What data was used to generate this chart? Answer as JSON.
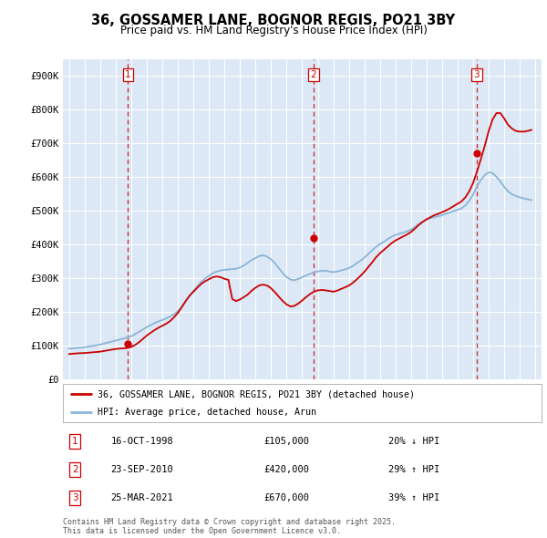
{
  "title": "36, GOSSAMER LANE, BOGNOR REGIS, PO21 3BY",
  "subtitle": "Price paid vs. HM Land Registry's House Price Index (HPI)",
  "ylim": [
    0,
    950000
  ],
  "yticks": [
    0,
    100000,
    200000,
    300000,
    400000,
    500000,
    600000,
    700000,
    800000,
    900000
  ],
  "ytick_labels": [
    "£0",
    "£100K",
    "£200K",
    "£300K",
    "£400K",
    "£500K",
    "£600K",
    "£700K",
    "£800K",
    "£900K"
  ],
  "fig_bg": "#ffffff",
  "plot_bg": "#dce8f5",
  "grid_color": "#ffffff",
  "hpi_color": "#8ab4d8",
  "price_color": "#cc0000",
  "vline_color": "#cc0000",
  "legend_label_price": "36, GOSSAMER LANE, BOGNOR REGIS, PO21 3BY (detached house)",
  "legend_label_hpi": "HPI: Average price, detached house, Arun",
  "transaction_labels": [
    "1",
    "2",
    "3"
  ],
  "transaction_dates_display": [
    "16-OCT-1998",
    "23-SEP-2010",
    "25-MAR-2021"
  ],
  "transaction_prices_display": [
    "£105,000",
    "£420,000",
    "£670,000"
  ],
  "transaction_hpi_display": [
    "20% ↓ HPI",
    "29% ↑ HPI",
    "39% ↑ HPI"
  ],
  "footnote": "Contains HM Land Registry data © Crown copyright and database right 2025.\nThis data is licensed under the Open Government Licence v3.0.",
  "sale1_year": 1998.79,
  "sale1_price": 105000,
  "sale2_year": 2010.73,
  "sale2_price": 420000,
  "sale3_year": 2021.23,
  "sale3_price": 670000,
  "hpi_years": [
    1995.0,
    1995.25,
    1995.5,
    1995.75,
    1996.0,
    1996.25,
    1996.5,
    1996.75,
    1997.0,
    1997.25,
    1997.5,
    1997.75,
    1998.0,
    1998.25,
    1998.5,
    1998.75,
    1999.0,
    1999.25,
    1999.5,
    1999.75,
    2000.0,
    2000.25,
    2000.5,
    2000.75,
    2001.0,
    2001.25,
    2001.5,
    2001.75,
    2002.0,
    2002.25,
    2002.5,
    2002.75,
    2003.0,
    2003.25,
    2003.5,
    2003.75,
    2004.0,
    2004.25,
    2004.5,
    2004.75,
    2005.0,
    2005.25,
    2005.5,
    2005.75,
    2006.0,
    2006.25,
    2006.5,
    2006.75,
    2007.0,
    2007.25,
    2007.5,
    2007.75,
    2008.0,
    2008.25,
    2008.5,
    2008.75,
    2009.0,
    2009.25,
    2009.5,
    2009.75,
    2010.0,
    2010.25,
    2010.5,
    2010.75,
    2011.0,
    2011.25,
    2011.5,
    2011.75,
    2012.0,
    2012.25,
    2012.5,
    2012.75,
    2013.0,
    2013.25,
    2013.5,
    2013.75,
    2014.0,
    2014.25,
    2014.5,
    2014.75,
    2015.0,
    2015.25,
    2015.5,
    2015.75,
    2016.0,
    2016.25,
    2016.5,
    2016.75,
    2017.0,
    2017.25,
    2017.5,
    2017.75,
    2018.0,
    2018.25,
    2018.5,
    2018.75,
    2019.0,
    2019.25,
    2019.5,
    2019.75,
    2020.0,
    2020.25,
    2020.5,
    2020.75,
    2021.0,
    2021.25,
    2021.5,
    2021.75,
    2022.0,
    2022.25,
    2022.5,
    2022.75,
    2023.0,
    2023.25,
    2023.5,
    2023.75,
    2024.0,
    2024.25,
    2024.5,
    2024.75
  ],
  "hpi_values": [
    91000,
    92000,
    93000,
    94000,
    95000,
    97000,
    99000,
    101000,
    103000,
    106000,
    109000,
    112000,
    115000,
    118000,
    121000,
    124000,
    128000,
    134000,
    141000,
    148000,
    155000,
    161000,
    167000,
    172000,
    176000,
    181000,
    186000,
    193000,
    202000,
    216000,
    232000,
    248000,
    262000,
    276000,
    289000,
    299000,
    307000,
    315000,
    320000,
    323000,
    325000,
    326000,
    327000,
    328000,
    332000,
    338000,
    346000,
    354000,
    360000,
    366000,
    368000,
    364000,
    356000,
    344000,
    330000,
    315000,
    303000,
    296000,
    294000,
    298000,
    303000,
    308000,
    313000,
    318000,
    320000,
    322000,
    322000,
    320000,
    318000,
    320000,
    323000,
    326000,
    330000,
    336000,
    344000,
    352000,
    361000,
    372000,
    383000,
    393000,
    401000,
    408000,
    416000,
    423000,
    428000,
    432000,
    435000,
    439000,
    444000,
    452000,
    461000,
    468000,
    474000,
    478000,
    481000,
    484000,
    487000,
    491000,
    495000,
    499000,
    503000,
    507000,
    516000,
    530000,
    548000,
    573000,
    592000,
    606000,
    614000,
    612000,
    601000,
    587000,
    571000,
    558000,
    549000,
    544000,
    540000,
    537000,
    534000,
    532000
  ],
  "price_years": [
    1995.0,
    1995.25,
    1995.5,
    1995.75,
    1996.0,
    1996.25,
    1996.5,
    1996.75,
    1997.0,
    1997.25,
    1997.5,
    1997.75,
    1998.0,
    1998.25,
    1998.5,
    1998.75,
    1999.0,
    1999.25,
    1999.5,
    1999.75,
    2000.0,
    2000.25,
    2000.5,
    2000.75,
    2001.0,
    2001.25,
    2001.5,
    2001.75,
    2002.0,
    2002.25,
    2002.5,
    2002.75,
    2003.0,
    2003.25,
    2003.5,
    2003.75,
    2004.0,
    2004.25,
    2004.5,
    2004.75,
    2005.0,
    2005.25,
    2005.5,
    2005.75,
    2006.0,
    2006.25,
    2006.5,
    2006.75,
    2007.0,
    2007.25,
    2007.5,
    2007.75,
    2008.0,
    2008.25,
    2008.5,
    2008.75,
    2009.0,
    2009.25,
    2009.5,
    2009.75,
    2010.0,
    2010.25,
    2010.5,
    2010.75,
    2011.0,
    2011.25,
    2011.5,
    2011.75,
    2012.0,
    2012.25,
    2012.5,
    2012.75,
    2013.0,
    2013.25,
    2013.5,
    2013.75,
    2014.0,
    2014.25,
    2014.5,
    2014.75,
    2015.0,
    2015.25,
    2015.5,
    2015.75,
    2016.0,
    2016.25,
    2016.5,
    2016.75,
    2017.0,
    2017.25,
    2017.5,
    2017.75,
    2018.0,
    2018.25,
    2018.5,
    2018.75,
    2019.0,
    2019.25,
    2019.5,
    2019.75,
    2020.0,
    2020.25,
    2020.5,
    2020.75,
    2021.0,
    2021.25,
    2021.5,
    2021.75,
    2022.0,
    2022.25,
    2022.5,
    2022.75,
    2023.0,
    2023.25,
    2023.5,
    2023.75,
    2024.0,
    2024.25,
    2024.5,
    2024.75
  ],
  "price_values": [
    75000,
    76000,
    77000,
    77500,
    78000,
    79000,
    80000,
    81000,
    82000,
    84000,
    86000,
    88000,
    90000,
    91000,
    92000,
    93000,
    96000,
    102000,
    110000,
    120000,
    130000,
    138000,
    146000,
    153000,
    159000,
    165000,
    173000,
    184000,
    197000,
    214000,
    232000,
    248000,
    260000,
    272000,
    283000,
    291000,
    297000,
    303000,
    305000,
    303000,
    298000,
    295000,
    238000,
    232000,
    237000,
    244000,
    252000,
    263000,
    272000,
    279000,
    281000,
    278000,
    270000,
    258000,
    245000,
    232000,
    222000,
    216000,
    218000,
    225000,
    234000,
    244000,
    253000,
    260000,
    264000,
    265000,
    264000,
    262000,
    260000,
    263000,
    268000,
    273000,
    278000,
    286000,
    296000,
    307000,
    319000,
    333000,
    347000,
    362000,
    374000,
    384000,
    394000,
    404000,
    412000,
    418000,
    424000,
    430000,
    437000,
    447000,
    458000,
    467000,
    475000,
    481000,
    487000,
    491000,
    496000,
    501000,
    507000,
    514000,
    521000,
    528000,
    540000,
    558000,
    583000,
    617000,
    654000,
    693000,
    737000,
    771000,
    790000,
    790000,
    774000,
    755000,
    744000,
    737000,
    735000,
    735000,
    737000,
    740000
  ]
}
